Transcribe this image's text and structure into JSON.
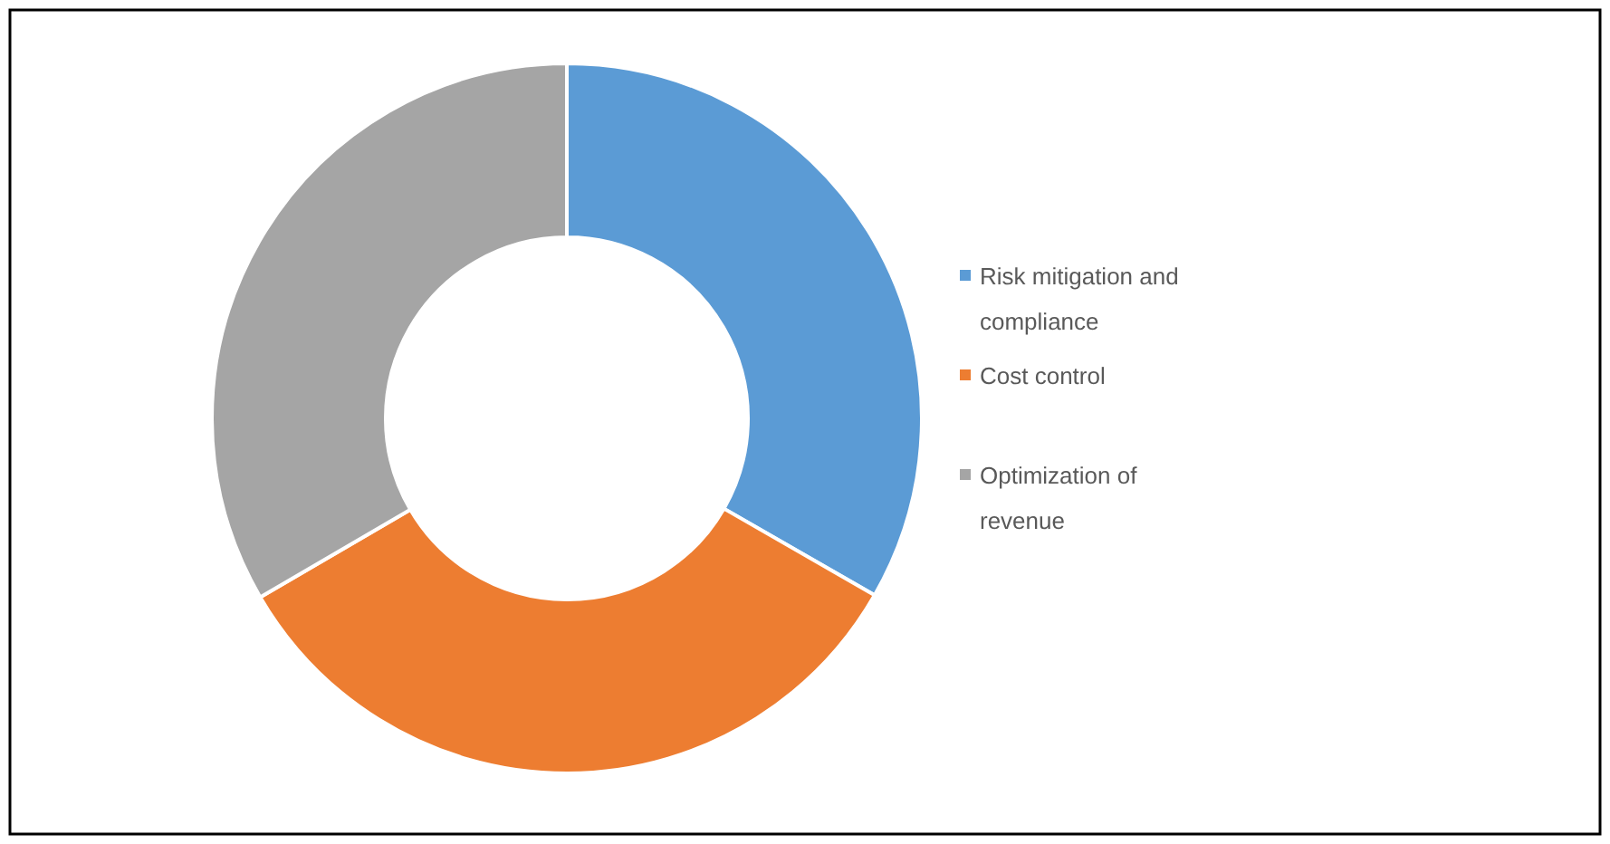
{
  "chart_data": {
    "type": "donut",
    "categories": [
      "Risk mitigation and compliance",
      "Cost control",
      "Optimization of revenue"
    ],
    "values": [
      33.3,
      33.3,
      33.4
    ],
    "colors": [
      "#5b9bd5",
      "#ed7d31",
      "#a5a5a5"
    ],
    "legend": "right"
  }
}
